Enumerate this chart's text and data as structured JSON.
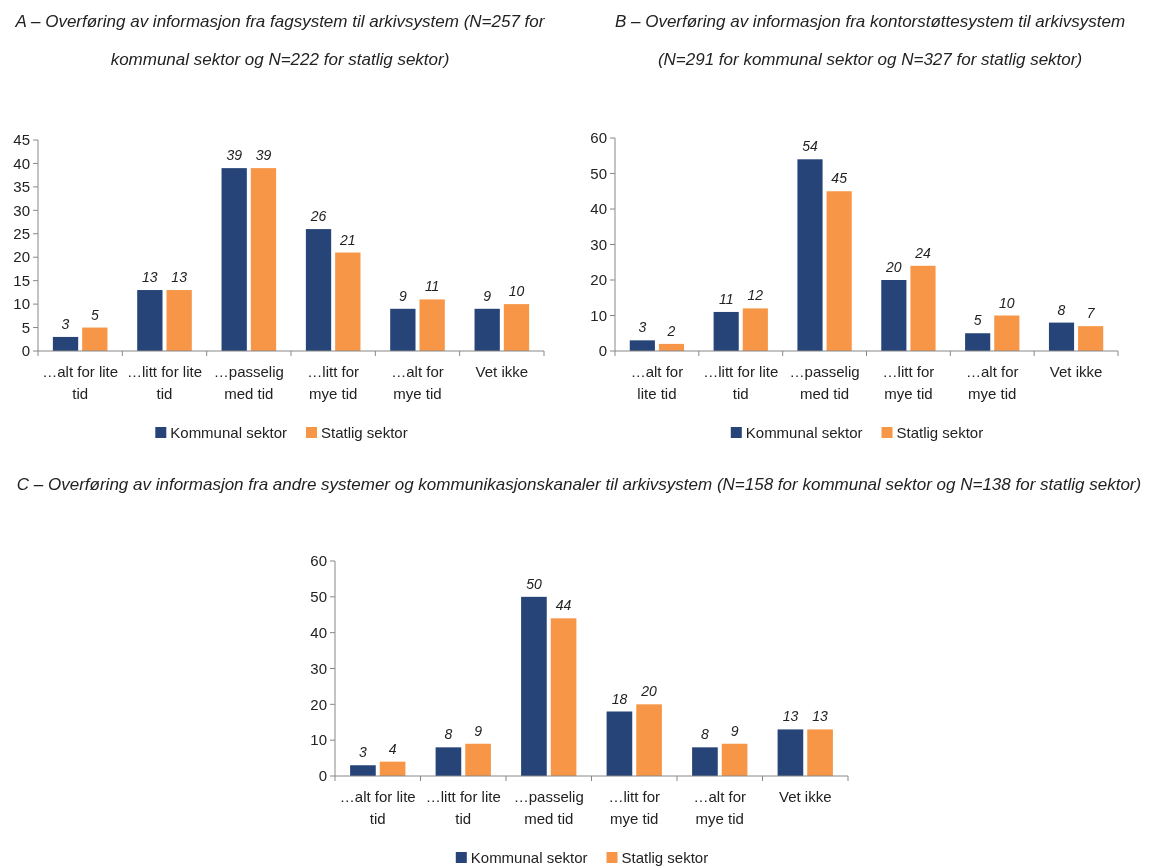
{
  "chart_data": [
    {
      "type": "bar",
      "title": "A – Overføring av informasjon fra fagsystem til arkivsystem (N=257 for kommunal sektor og N=222 for statlig sektor)",
      "categories": [
        "…alt for lite tid",
        "…litt for lite tid",
        "…passelig med tid",
        "…litt for mye tid",
        "…alt for mye tid",
        "Vet ikke"
      ],
      "series": [
        {
          "name": "Kommunal sektor",
          "color": "#264478",
          "values": [
            3,
            13,
            39,
            26,
            9,
            9
          ]
        },
        {
          "name": "Statlig sektor",
          "color": "#f79646",
          "values": [
            5,
            13,
            39,
            21,
            11,
            10
          ]
        }
      ],
      "ylim": [
        0,
        45
      ],
      "yticks": [
        0,
        5,
        10,
        15,
        20,
        25,
        30,
        35,
        40,
        45
      ],
      "data_labels": true,
      "legend": "bottom"
    },
    {
      "type": "bar",
      "title": "B – Overføring av informasjon fra kontorstøttesystem til arkivsystem (N=291 for kommunal sektor og N=327 for statlig sektor)",
      "categories": [
        "…alt for lite tid",
        "…litt for lite tid",
        "…passelig med tid",
        "…litt for mye tid",
        "…alt for mye tid",
        "Vet ikke"
      ],
      "series": [
        {
          "name": "Kommunal sektor",
          "color": "#264478",
          "values": [
            3,
            11,
            54,
            20,
            5,
            8
          ]
        },
        {
          "name": "Statlig sektor",
          "color": "#f79646",
          "values": [
            2,
            12,
            45,
            24,
            10,
            7
          ]
        }
      ],
      "ylim": [
        0,
        60
      ],
      "yticks": [
        0,
        10,
        20,
        30,
        40,
        50,
        60
      ],
      "data_labels": true,
      "legend": "bottom"
    },
    {
      "type": "bar",
      "title": "C – Overføring av informasjon fra andre systemer og kommunikasjonskanaler til arkivsystem (N=158 for kommunal sektor og N=138 for statlig sektor)",
      "categories": [
        "…alt for lite tid",
        "…litt for lite tid",
        "…passelig med tid",
        "…litt for mye tid",
        "…alt for mye tid",
        "Vet ikke"
      ],
      "series": [
        {
          "name": "Kommunal sektor",
          "color": "#264478",
          "values": [
            3,
            8,
            50,
            18,
            8,
            13
          ]
        },
        {
          "name": "Statlig sektor",
          "color": "#f79646",
          "values": [
            4,
            9,
            44,
            20,
            9,
            13
          ]
        }
      ],
      "ylim": [
        0,
        60
      ],
      "yticks": [
        0,
        10,
        20,
        30,
        40,
        50,
        60
      ],
      "data_labels": true,
      "legend": "bottom"
    }
  ]
}
